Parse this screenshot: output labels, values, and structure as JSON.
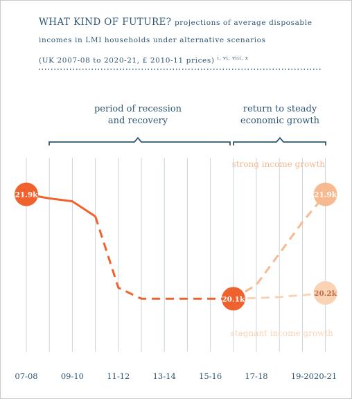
{
  "header": {
    "title_main": "WHAT KIND OF FUTURE?",
    "title_rest": "projections of average disposable",
    "line2": "incomes in LMI households under alternative scenarios",
    "line3": "(UK 2007-08 to 2020-21, £ 2010-11 prices)",
    "footnote_refs": "i, vi, viii, x"
  },
  "periods": {
    "recession": [
      "period of recession",
      "and recovery"
    ],
    "growth": [
      "return to steady",
      "economic growth"
    ]
  },
  "colors": {
    "strong": "#f0622d",
    "light": "#f7b98f",
    "pale": "#fad3b5",
    "text_blue": "#2e5773",
    "grid": "#c8d4dc"
  },
  "chart_data": {
    "type": "line",
    "title": "WHAT KIND OF FUTURE? projections of average disposable incomes in LMI households under alternative scenarios (UK 2007-08 to 2020-21, £ 2010-11 prices)",
    "x_categories": [
      "07-08",
      "08-09",
      "09-10",
      "10-11",
      "11-12",
      "12-13",
      "13-14",
      "14-15",
      "15-16",
      "16-17",
      "17-18",
      "18-19",
      "19-20",
      "20-21"
    ],
    "x_tick_labels": [
      "07-08",
      "09-10",
      "11-12",
      "13-14",
      "15-16",
      "17-18",
      "19-20",
      "20-21"
    ],
    "ylabel": "",
    "ylim": [
      19900,
      22050
    ],
    "grid": true,
    "series": [
      {
        "name": "",
        "style": "solid",
        "points": [
          [
            "07-08",
            21900
          ],
          [
            "08-09",
            21830
          ],
          [
            "09-10",
            21780
          ],
          [
            "10-11",
            21520
          ]
        ]
      },
      {
        "name": "",
        "style": "dashed",
        "points": [
          [
            "10-11",
            21520
          ],
          [
            "11-12",
            20290
          ],
          [
            "12-13",
            20100
          ],
          [
            "13-14",
            20100
          ],
          [
            "14-15",
            20100
          ],
          [
            "15-16",
            20100
          ],
          [
            "16-17",
            20100
          ]
        ]
      },
      {
        "name": "strong income growth",
        "style": "dashed",
        "points": [
          [
            "16-17",
            20100
          ],
          [
            "17-18",
            20340
          ],
          [
            "18-19",
            20880
          ],
          [
            "19-20",
            21420
          ],
          [
            "20-21",
            21900
          ]
        ]
      },
      {
        "name": "stagnant income growth",
        "style": "dashed",
        "points": [
          [
            "16-17",
            20100
          ],
          [
            "17-18",
            20110
          ],
          [
            "18-19",
            20130
          ],
          [
            "19-20",
            20160
          ],
          [
            "20-21",
            20200
          ]
        ]
      }
    ],
    "data_labels": [
      {
        "x": "07-08",
        "value": 21900,
        "text": "21.9k"
      },
      {
        "x": "16-17",
        "value": 20100,
        "text": "20.1k"
      },
      {
        "x": "20-21",
        "value": 21900,
        "text": "21.9k"
      },
      {
        "x": "20-21",
        "value": 20200,
        "text": "20.2k"
      }
    ]
  }
}
